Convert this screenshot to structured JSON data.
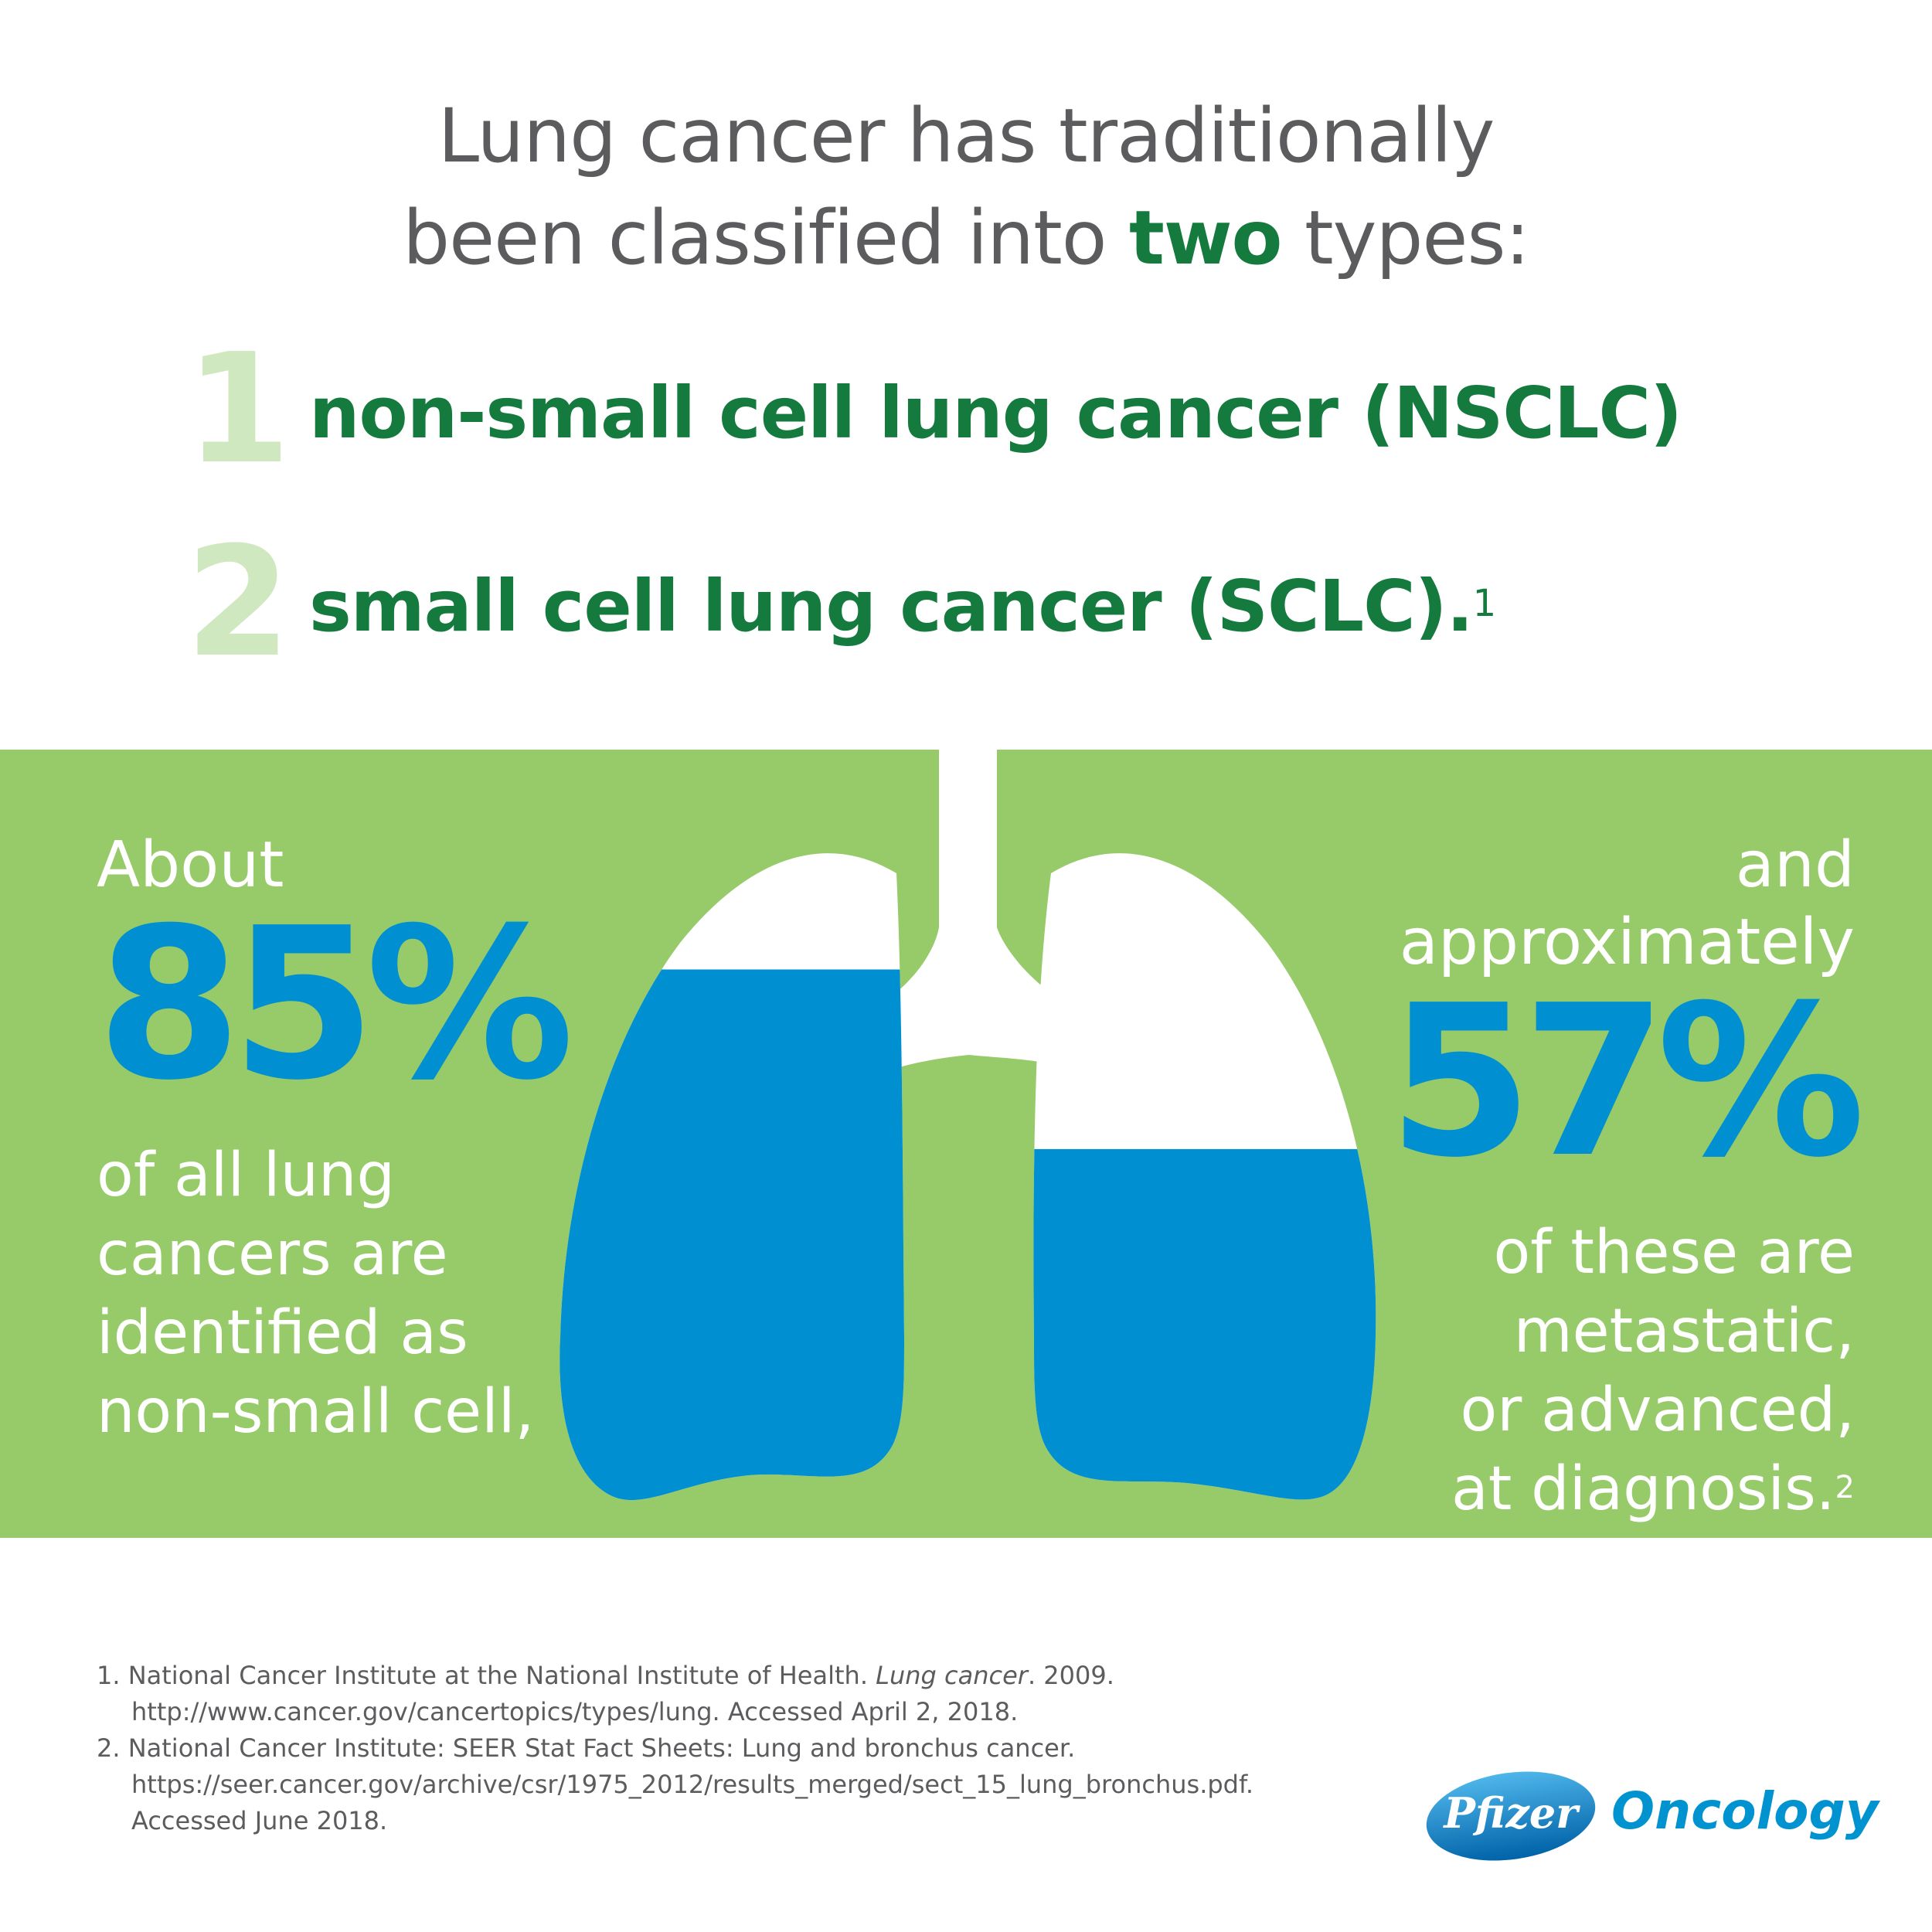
{
  "headline": {
    "line1": "Lung cancer has traditionally",
    "line2_before": "been classified into ",
    "line2_bold": "two",
    "line2_after": " types:"
  },
  "types": [
    {
      "number": "1",
      "label": "non-small cell lung cancer (NSCLC)",
      "superscript": ""
    },
    {
      "number": "2",
      "label": "small cell lung cancer (SCLC).",
      "superscript": "1"
    }
  ],
  "left_stat": {
    "lead": "About",
    "value": "85%",
    "lines": [
      "of all lung",
      "cancers are",
      "identified as",
      "non-small cell,"
    ]
  },
  "right_stat": {
    "lead": "and approximately",
    "value": "57%",
    "lines": [
      "of these are",
      "metastatic,",
      "or advanced,",
      "at diagnosis."
    ],
    "superscript": "2"
  },
  "lung_fill": {
    "left_fraction": 0.85,
    "right_fraction": 0.57
  },
  "colors": {
    "band_green": "#97ca69",
    "stat_blue": "#0090d1",
    "title_green": "#157a3e",
    "number_pale_green": "#cfe8c0",
    "text_gray": "#5c5c5f"
  },
  "references": [
    {
      "line1_before": "1. National Cancer Institute at the National Institute of Health. ",
      "line1_italic": "Lung cancer",
      "line1_after": ". 2009.",
      "line2": "http://www.cancer.gov/cancertopics/types/lung. Accessed April 2, 2018."
    },
    {
      "line1": "2. National Cancer Institute: SEER Stat Fact Sheets: Lung and bronchus cancer.",
      "line2": "https://seer.cancer.gov/archive/csr/1975_2012/results_merged/sect_15_lung_bronchus.pdf.",
      "line3": "Accessed June 2018."
    }
  ],
  "logo": {
    "brand": "Pfizer",
    "division": "Oncology"
  }
}
